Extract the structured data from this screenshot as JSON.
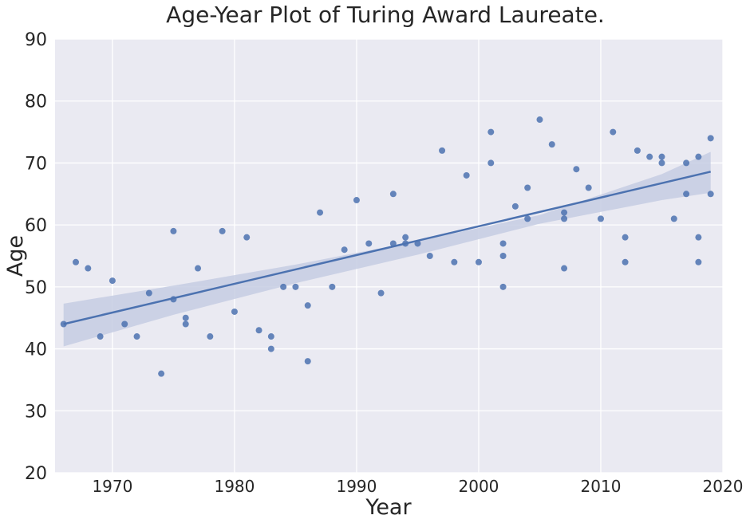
{
  "chart_data": {
    "type": "scatter",
    "title": "Age-Year Plot of Turing Award Laureate.",
    "xlabel": "Year",
    "ylabel": "Age",
    "xlim": [
      1965.3,
      2020
    ],
    "ylim": [
      20,
      90
    ],
    "xticks": [
      1970,
      1980,
      1990,
      2000,
      2010,
      2020
    ],
    "yticks": [
      20,
      30,
      40,
      50,
      60,
      70,
      80,
      90
    ],
    "grid": true,
    "legend": "none",
    "colors": {
      "background": "#eaeaf2",
      "grid": "#ffffff",
      "point": "#4c72b0",
      "line": "#4c72b0",
      "band": "#c5cde3"
    },
    "points": [
      [
        1966,
        44
      ],
      [
        1967,
        54
      ],
      [
        1968,
        53
      ],
      [
        1969,
        42
      ],
      [
        1970,
        51
      ],
      [
        1971,
        44
      ],
      [
        1972,
        42
      ],
      [
        1973,
        49
      ],
      [
        1974,
        36
      ],
      [
        1975,
        59
      ],
      [
        1975,
        48
      ],
      [
        1976,
        45
      ],
      [
        1976,
        44
      ],
      [
        1977,
        53
      ],
      [
        1978,
        42
      ],
      [
        1979,
        59
      ],
      [
        1980,
        46
      ],
      [
        1981,
        58
      ],
      [
        1982,
        43
      ],
      [
        1983,
        42
      ],
      [
        1983,
        40
      ],
      [
        1984,
        50
      ],
      [
        1985,
        50
      ],
      [
        1986,
        47
      ],
      [
        1986,
        38
      ],
      [
        1987,
        62
      ],
      [
        1988,
        50
      ],
      [
        1989,
        56
      ],
      [
        1990,
        64
      ],
      [
        1991,
        57
      ],
      [
        1992,
        49
      ],
      [
        1993,
        65
      ],
      [
        1993,
        57
      ],
      [
        1994,
        58
      ],
      [
        1994,
        57
      ],
      [
        1995,
        57
      ],
      [
        1996,
        55
      ],
      [
        1997,
        72
      ],
      [
        1998,
        54
      ],
      [
        1999,
        68
      ],
      [
        2000,
        54
      ],
      [
        2001,
        75
      ],
      [
        2001,
        70
      ],
      [
        2002,
        57
      ],
      [
        2002,
        55
      ],
      [
        2002,
        50
      ],
      [
        2003,
        63
      ],
      [
        2004,
        66
      ],
      [
        2004,
        61
      ],
      [
        2005,
        77
      ],
      [
        2006,
        73
      ],
      [
        2007,
        62
      ],
      [
        2007,
        61
      ],
      [
        2007,
        53
      ],
      [
        2008,
        69
      ],
      [
        2009,
        66
      ],
      [
        2010,
        61
      ],
      [
        2011,
        75
      ],
      [
        2012,
        58
      ],
      [
        2012,
        54
      ],
      [
        2013,
        72
      ],
      [
        2014,
        71
      ],
      [
        2015,
        71
      ],
      [
        2015,
        70
      ],
      [
        2016,
        61
      ],
      [
        2017,
        70
      ],
      [
        2017,
        65
      ],
      [
        2018,
        71
      ],
      [
        2018,
        58
      ],
      [
        2018,
        54
      ],
      [
        2019,
        74
      ],
      [
        2019,
        65
      ]
    ],
    "regression": {
      "x": [
        1966,
        2019
      ],
      "y": [
        44,
        68.6
      ]
    },
    "confidence_band": {
      "x": [
        1966,
        1975,
        1985,
        1995,
        2005,
        2015,
        2019
      ],
      "upper": [
        47.3,
        50.2,
        53.6,
        57.4,
        61.6,
        68.2,
        71.8
      ],
      "lower": [
        40.4,
        45.5,
        50.6,
        55.2,
        60.2,
        64.0,
        65.2
      ]
    }
  }
}
